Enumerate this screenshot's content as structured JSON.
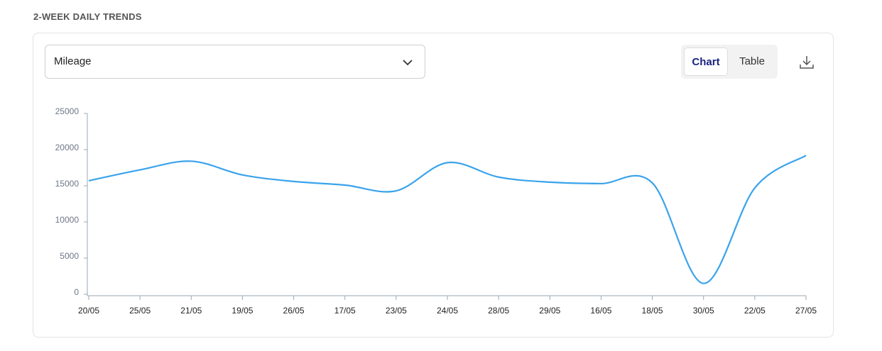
{
  "header": {
    "title": "2-WEEK DAILY TRENDS"
  },
  "controls": {
    "metric": "Mileage",
    "views": [
      "Chart",
      "Table"
    ],
    "active_view": "Chart"
  },
  "chart_data": {
    "type": "line",
    "categories": [
      "20/05",
      "25/05",
      "21/05",
      "19/05",
      "26/05",
      "17/05",
      "23/05",
      "24/05",
      "28/05",
      "29/05",
      "16/05",
      "18/05",
      "30/05",
      "22/05",
      "27/05"
    ],
    "series": [
      {
        "name": "Mileage",
        "color": "#3aa3ec",
        "values": [
          15700,
          17200,
          18400,
          16500,
          15600,
          15100,
          14300,
          18200,
          16200,
          15500,
          15300,
          15400,
          1500,
          14700,
          19200
        ]
      }
    ],
    "ylim": [
      0,
      25000
    ],
    "yticks": [
      0,
      5000,
      10000,
      15000,
      20000,
      25000
    ],
    "grid": false
  }
}
